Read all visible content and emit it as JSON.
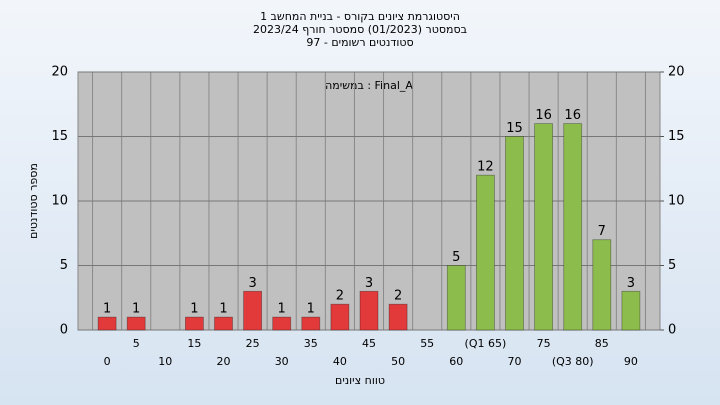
{
  "chart_data": {
    "type": "bar",
    "title": "היסטוגרמת ציונים בקורס - בניית המחשב 1",
    "subtitle": "בסמסטר  (01/2023)  סמסטר חורף  2023/24",
    "subtitle2": "סטודנטים רשומים - 97",
    "annotation": "במשימה : Final_A",
    "ylabel": "מספר סטודנטים",
    "xlabel": "טווח ציונים",
    "categories": [
      "0",
      "5",
      "10",
      "15",
      "20",
      "25",
      "30",
      "35",
      "40",
      "45",
      "50",
      "55",
      "60",
      "(Q1 65)",
      "70",
      "75",
      "(Q3 80)",
      "85",
      "90"
    ],
    "values": [
      1,
      1,
      0,
      1,
      1,
      3,
      1,
      1,
      2,
      3,
      2,
      0,
      5,
      12,
      15,
      16,
      16,
      7,
      3
    ],
    "colors": [
      "#e23a3a",
      "#e23a3a",
      "#e23a3a",
      "#e23a3a",
      "#e23a3a",
      "#e23a3a",
      "#e23a3a",
      "#e23a3a",
      "#e23a3a",
      "#e23a3a",
      "#e23a3a",
      "#e23a3a",
      "#8cbc4c",
      "#8cbc4c",
      "#8cbc4c",
      "#8cbc4c",
      "#8cbc4c",
      "#8cbc4c",
      "#8cbc4c"
    ],
    "ylim": [
      0,
      20
    ],
    "yticks": [
      0,
      5,
      10,
      15,
      20
    ],
    "y2lim": [
      0,
      20
    ],
    "y2ticks": [
      0,
      5,
      10,
      15,
      20
    ],
    "grid": true
  }
}
